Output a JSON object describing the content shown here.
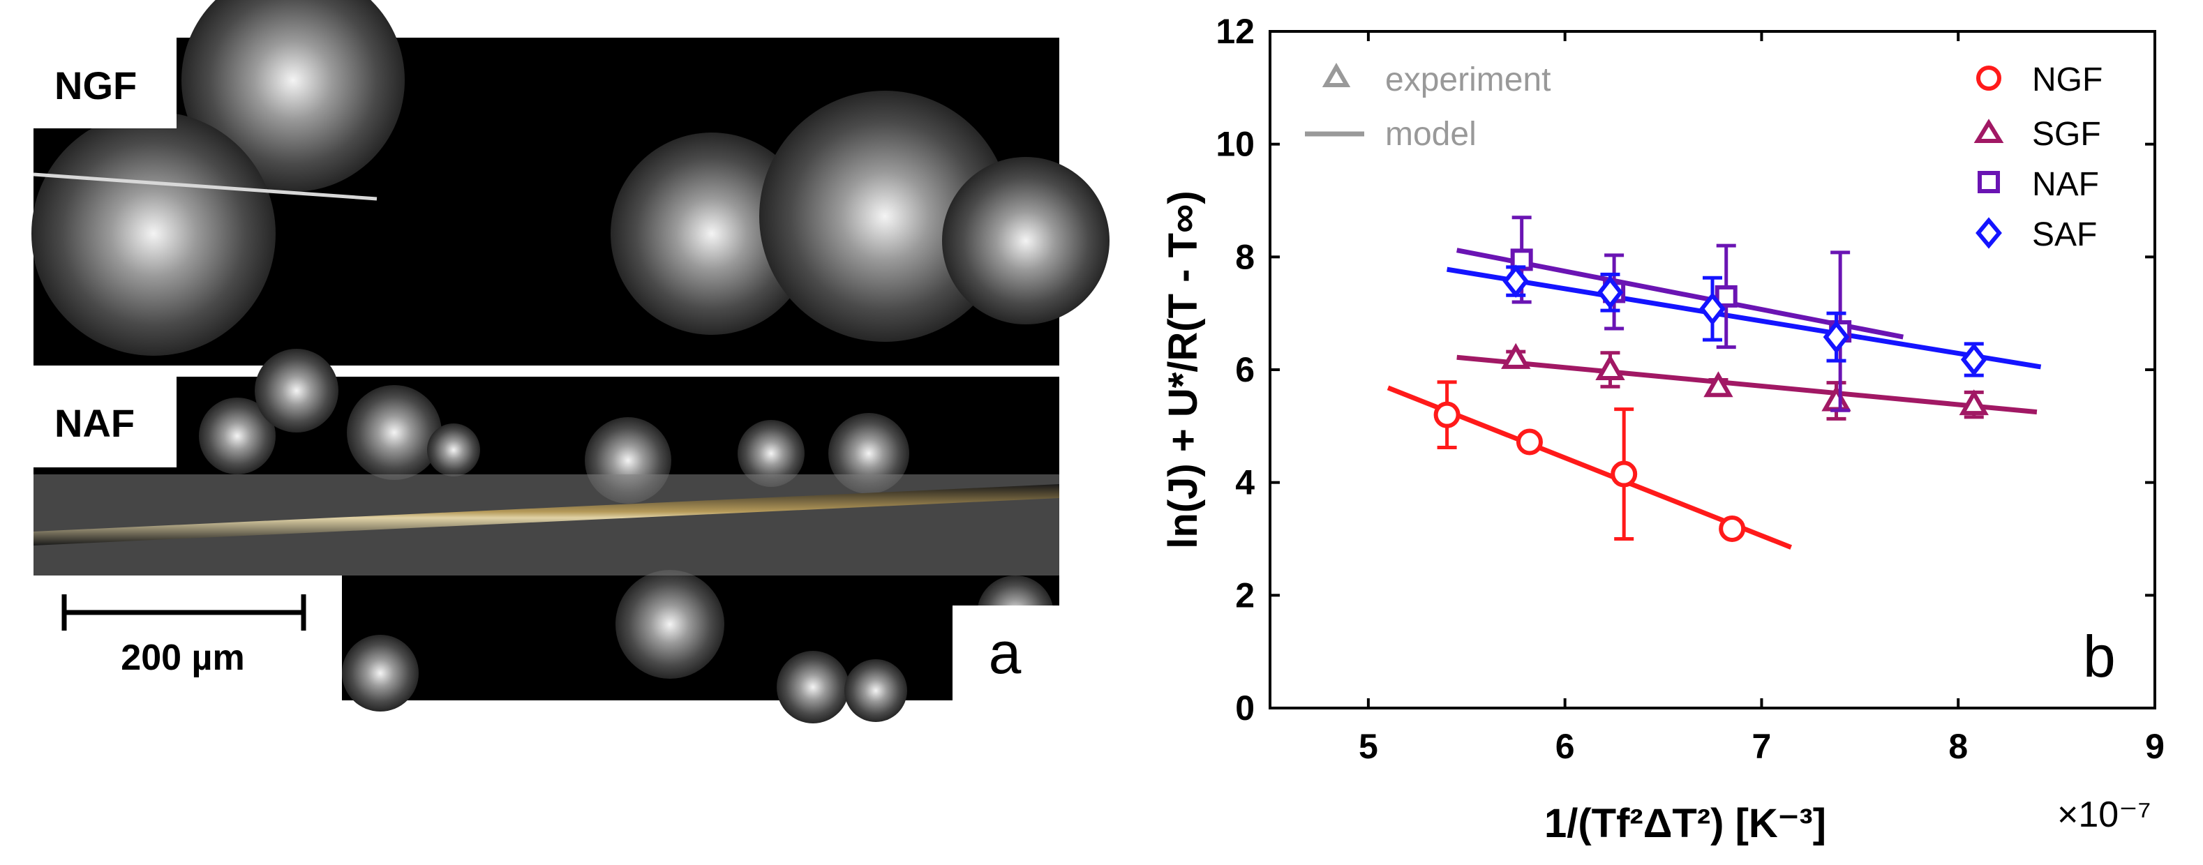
{
  "panel_a": {
    "top_label": "NGF",
    "bottom_label": "NAF",
    "scale_bar": "200 µm",
    "panel_letter": "a"
  },
  "chart_data": {
    "type": "scatter",
    "panel_letter": "b",
    "xlabel": "1/(Tf²ΔT²) [K⁻³]",
    "ylabel": "ln(J) + U*/R(T - T∞)",
    "x_multiplier": "×10⁻⁷",
    "xlim": [
      4.5,
      9
    ],
    "ylim": [
      0,
      12
    ],
    "xticks": [
      5,
      6,
      7,
      8,
      9
    ],
    "yticks": [
      0,
      2,
      4,
      6,
      8,
      10,
      12
    ],
    "style_legend": [
      {
        "marker": "triangle",
        "label": "experiment"
      },
      {
        "marker": "line",
        "label": "model"
      }
    ],
    "series": [
      {
        "name": "NGF",
        "marker": "circle",
        "color": "#ff1a1a",
        "x": [
          5.4,
          5.82,
          6.3,
          6.85
        ],
        "y": [
          5.2,
          4.72,
          4.15,
          3.18
        ],
        "err": [
          0.58,
          0.12,
          1.15,
          0.1
        ],
        "fit_x": [
          5.1,
          7.15
        ],
        "fit_y": [
          5.68,
          2.85
        ]
      },
      {
        "name": "SGF",
        "marker": "triangle",
        "color": "#a11864",
        "x": [
          5.75,
          6.23,
          6.78,
          7.38,
          8.08
        ],
        "y": [
          6.2,
          6.0,
          5.7,
          5.45,
          5.38
        ],
        "err": [
          0.12,
          0.3,
          0.12,
          0.32,
          0.22
        ],
        "fit_x": [
          5.45,
          8.4
        ],
        "fit_y": [
          6.22,
          5.25
        ]
      },
      {
        "name": "NAF",
        "marker": "square",
        "color": "#6a14b3",
        "x": [
          5.78,
          6.25,
          6.82,
          7.4
        ],
        "y": [
          7.95,
          7.38,
          7.3,
          6.68
        ],
        "err": [
          0.75,
          0.65,
          0.9,
          1.4
        ],
        "fit_x": [
          5.45,
          7.72
        ],
        "fit_y": [
          8.12,
          6.58
        ]
      },
      {
        "name": "SAF",
        "marker": "diamond",
        "color": "#1414ff",
        "x": [
          5.75,
          6.23,
          6.75,
          7.38,
          8.08
        ],
        "y": [
          7.57,
          7.37,
          7.08,
          6.58,
          6.18
        ],
        "err": [
          0.25,
          0.32,
          0.55,
          0.42,
          0.28
        ],
        "fit_x": [
          5.4,
          8.42
        ],
        "fit_y": [
          7.78,
          6.05
        ]
      }
    ]
  }
}
